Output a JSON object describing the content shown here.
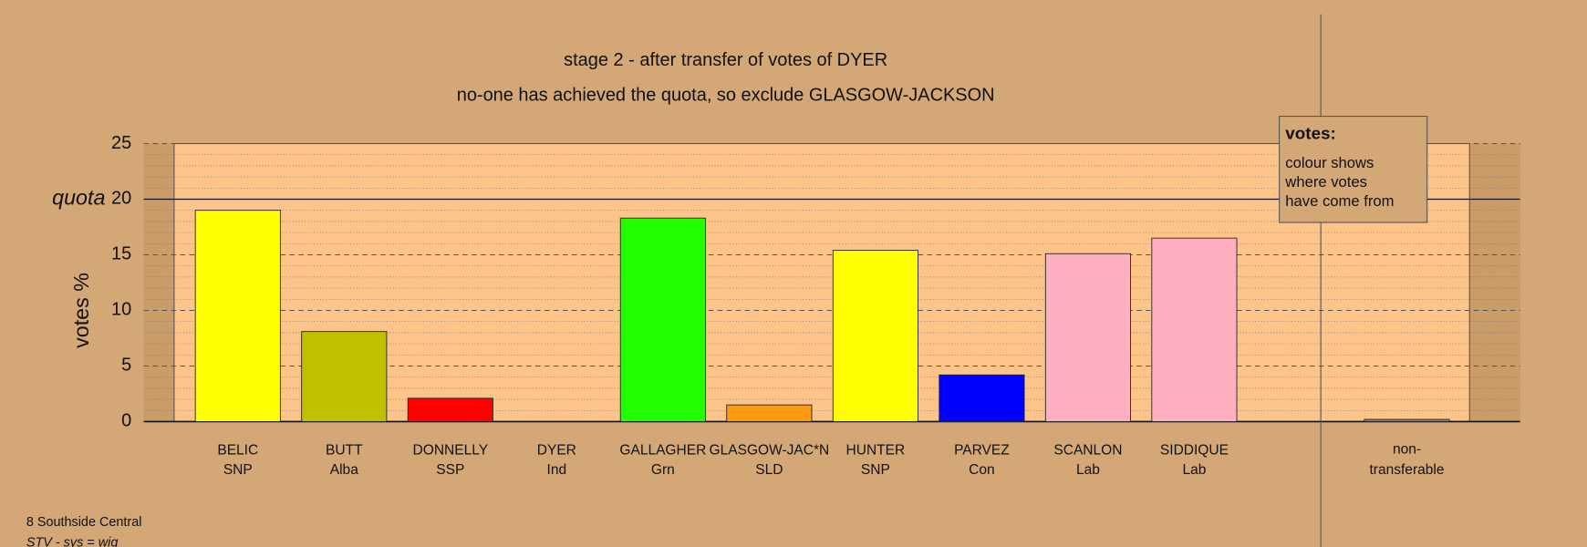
{
  "chart_data": {
    "type": "bar",
    "title": "stage 2 - after transfer of votes of DYER",
    "subtitle": "no-one has achieved the quota, so exclude GLASGOW-JACKSON",
    "y_label": "votes %",
    "categories": [
      "BELIC",
      "BUTT",
      "DONNELLY",
      "DYER",
      "GALLAGHER",
      "GLASGOW-JAC*N",
      "HUNTER",
      "PARVEZ",
      "SCANLON",
      "SIDDIQUE"
    ],
    "parties": [
      "SNP",
      "Alba",
      "SSP",
      "Ind",
      "Grn",
      "SLD",
      "SNP",
      "Con",
      "Lab",
      "Lab"
    ],
    "values": [
      19,
      8.1,
      2.1,
      0,
      18.3,
      1.5,
      15.4,
      4.2,
      15.1,
      16.5
    ],
    "colors": [
      "#ffff00",
      "#c0c000",
      "#ff0000",
      "#888888",
      "#22ff00",
      "#ff9a10",
      "#ffff00",
      "#0000ff",
      "#ffb0c0",
      "#ffb0c0"
    ],
    "nontransferable": {
      "label_lines": [
        "non-",
        "transferable"
      ],
      "value": 0.2,
      "color": "#a08060"
    },
    "quota_label": "quota",
    "quota": 20,
    "ylim": [
      0,
      25
    ],
    "yticks": [
      0,
      5,
      10,
      15,
      25
    ],
    "yminor": [
      1,
      2,
      3,
      4,
      6,
      7,
      8,
      9,
      11,
      12,
      13,
      14,
      16,
      17,
      18,
      19,
      21,
      22,
      23,
      24
    ],
    "legend": {
      "title": "votes:",
      "lines": [
        "colour shows",
        "where votes",
        "have come from"
      ]
    },
    "footer": [
      "8 Southside Central",
      "STV - sys = wig"
    ]
  }
}
